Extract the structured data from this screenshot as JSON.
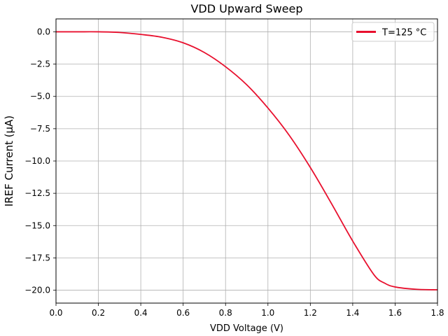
{
  "chart_data": {
    "type": "line",
    "title": "VDD Upward Sweep",
    "xlabel": "VDD Voltage (V)",
    "ylabel": "IREF Current (μA)",
    "xlim": [
      0.0,
      1.8
    ],
    "ylim": [
      -21.0,
      1.0
    ],
    "xticks": [
      0.0,
      0.2,
      0.4,
      0.6,
      0.8,
      1.0,
      1.2,
      1.4,
      1.6,
      1.8
    ],
    "xtick_labels": [
      "0.0",
      "0.2",
      "0.4",
      "0.6",
      "0.8",
      "1.0",
      "1.2",
      "1.4",
      "1.6",
      "1.8"
    ],
    "yticks": [
      0.0,
      -2.5,
      -5.0,
      -7.5,
      -10.0,
      -12.5,
      -15.0,
      -17.5,
      -20.0
    ],
    "ytick_labels": [
      "0.0",
      "−2.5",
      "−5.0",
      "−7.5",
      "−10.0",
      "−12.5",
      "−15.0",
      "−17.5",
      "−20.0"
    ],
    "grid": true,
    "legend_position": "top-right",
    "series": [
      {
        "name": "T=125 °C",
        "color": "#e8102e",
        "x": [
          0.0,
          0.1,
          0.2,
          0.3,
          0.4,
          0.5,
          0.6,
          0.7,
          0.8,
          0.9,
          1.0,
          1.1,
          1.2,
          1.3,
          1.4,
          1.5,
          1.55,
          1.6,
          1.7,
          1.8
        ],
        "y": [
          0.0,
          0.0,
          0.0,
          -0.05,
          -0.2,
          -0.42,
          -0.85,
          -1.6,
          -2.7,
          -4.1,
          -5.9,
          -8.0,
          -10.5,
          -13.3,
          -16.2,
          -18.8,
          -19.45,
          -19.75,
          -19.93,
          -19.97
        ]
      }
    ]
  }
}
